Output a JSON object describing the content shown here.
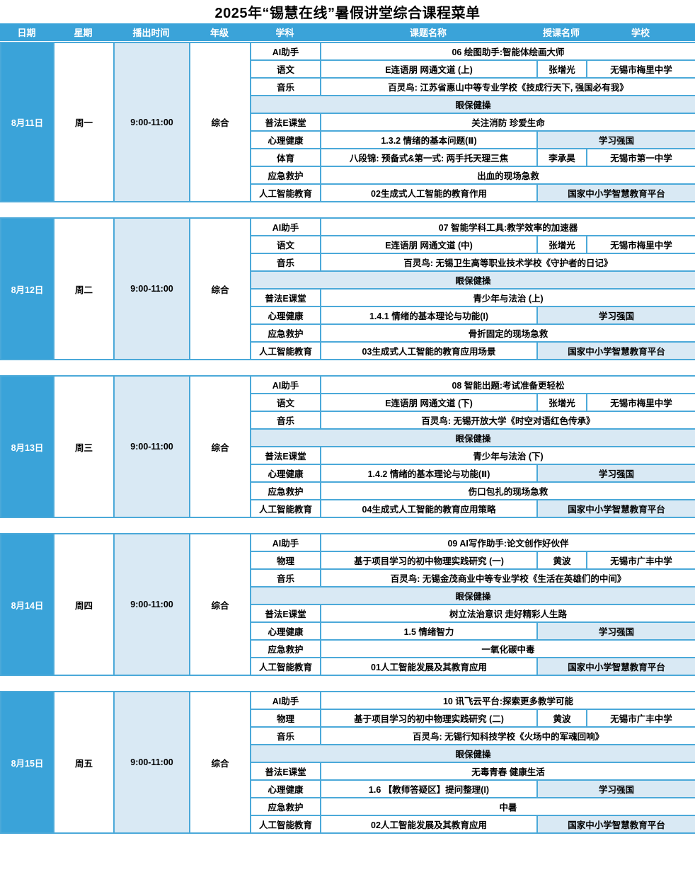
{
  "title": "2025年“锡慧在线”暑假讲堂综合课程菜单",
  "columns": [
    "日期",
    "星期",
    "播出时间",
    "年级",
    "学科",
    "课题名称",
    "授课名师",
    "学校"
  ],
  "colors": {
    "header_blue": "#3AA3D9",
    "light_blue": "#D9E9F4",
    "border_blue": "#4BA9D9"
  },
  "blocks": [
    {
      "date": "8月11日",
      "week": "周一",
      "time": "9:00-11:00",
      "grade": "综合",
      "rows": [
        {
          "type": "full",
          "subject": "AI助手",
          "topic": "06 绘图助手:智能体绘画大师"
        },
        {
          "type": "tws",
          "subject": "语文",
          "topic": "E连语朋 网通文道 (上)",
          "teacher": "张增光",
          "school": "无锡市梅里中学"
        },
        {
          "type": "full",
          "subject": "音乐",
          "topic": "百灵鸟: 江苏省惠山中等专业学校《技成行天下, 强国必有我》"
        },
        {
          "type": "exercise",
          "topic": "眼保健操"
        },
        {
          "type": "full",
          "subject": "普法E课堂",
          "topic": "关注消防 珍爱生命"
        },
        {
          "type": "platform",
          "subject": "心理健康",
          "topic": "1.3.2 情绪的基本问题(Ⅱ)",
          "platform": "学习强国"
        },
        {
          "type": "tws",
          "subject": "体育",
          "topic": "八段锦: 预备式&第一式: 两手托天理三焦",
          "teacher": "李承昊",
          "school": "无锡市第一中学",
          "topic_align": "left"
        },
        {
          "type": "full",
          "subject": "应急救护",
          "topic": "出血的现场急救"
        },
        {
          "type": "platform",
          "subject": "人工智能教育",
          "topic": "02生成式人工智能的教育作用",
          "platform": "国家中小学智慧教育平台"
        }
      ]
    },
    {
      "date": "8月12日",
      "week": "周二",
      "time": "9:00-11:00",
      "grade": "综合",
      "rows": [
        {
          "type": "full",
          "subject": "AI助手",
          "topic": "07 智能学科工具:教学效率的加速器"
        },
        {
          "type": "tws",
          "subject": "语文",
          "topic": "E连语朋 网通文道 (中)",
          "teacher": "张增光",
          "school": "无锡市梅里中学"
        },
        {
          "type": "full",
          "subject": "音乐",
          "topic": "百灵鸟: 无锡卫生高等职业技术学校《守护者的日记》"
        },
        {
          "type": "exercise",
          "topic": "眼保健操"
        },
        {
          "type": "full",
          "subject": "普法E课堂",
          "topic": "青少年与法治 (上)"
        },
        {
          "type": "platform",
          "subject": "心理健康",
          "topic": "1.4.1 情绪的基本理论与功能(I)",
          "platform": "学习强国"
        },
        {
          "type": "full",
          "subject": "应急救护",
          "topic": "骨折固定的现场急救"
        },
        {
          "type": "platform",
          "subject": "人工智能教育",
          "topic": "03生成式人工智能的教育应用场景",
          "platform": "国家中小学智慧教育平台"
        }
      ]
    },
    {
      "date": "8月13日",
      "week": "周三",
      "time": "9:00-11:00",
      "grade": "综合",
      "rows": [
        {
          "type": "full",
          "subject": "AI助手",
          "topic": "08 智能出题:考试准备更轻松"
        },
        {
          "type": "tws",
          "subject": "语文",
          "topic": "E连语朋 网通文道 (下)",
          "teacher": "张增光",
          "school": "无锡市梅里中学"
        },
        {
          "type": "full",
          "subject": "音乐",
          "topic": "百灵鸟: 无锡开放大学《时空对语红色传承》"
        },
        {
          "type": "exercise",
          "topic": "眼保健操"
        },
        {
          "type": "full",
          "subject": "普法E课堂",
          "topic": "青少年与法治 (下)"
        },
        {
          "type": "platform",
          "subject": "心理健康",
          "topic": "1.4.2 情绪的基本理论与功能(Ⅱ)",
          "platform": "学习强国"
        },
        {
          "type": "full",
          "subject": "应急救护",
          "topic": "伤口包扎的现场急救"
        },
        {
          "type": "platform",
          "subject": "人工智能教育",
          "topic": "04生成式人工智能的教育应用策略",
          "platform": "国家中小学智慧教育平台"
        }
      ]
    },
    {
      "date": "8月14日",
      "week": "周四",
      "time": "9:00-11:00",
      "grade": "综合",
      "rows": [
        {
          "type": "full",
          "subject": "AI助手",
          "topic": "09 AI写作助手:论文创作好伙伴"
        },
        {
          "type": "tws",
          "subject": "物理",
          "topic": "基于项目学习的初中物理实践研究 (一)",
          "teacher": "黄波",
          "school": "无锡市广丰中学"
        },
        {
          "type": "full",
          "subject": "音乐",
          "topic": "百灵鸟: 无锡金茂商业中等专业学校《生活在英雄们的中间》"
        },
        {
          "type": "exercise",
          "topic": "眼保健操"
        },
        {
          "type": "full",
          "subject": "普法E课堂",
          "topic": "树立法治意识 走好精彩人生路"
        },
        {
          "type": "platform",
          "subject": "心理健康",
          "topic": "1.5 情绪智力",
          "platform": "学习强国"
        },
        {
          "type": "full",
          "subject": "应急救护",
          "topic": "一氧化碳中毒"
        },
        {
          "type": "platform",
          "subject": "人工智能教育",
          "topic": "01人工智能发展及其教育应用",
          "platform": "国家中小学智慧教育平台"
        }
      ]
    },
    {
      "date": "8月15日",
      "week": "周五",
      "time": "9:00-11:00",
      "grade": "综合",
      "rows": [
        {
          "type": "full",
          "subject": "AI助手",
          "topic": "10 讯飞云平台:探索更多教学可能"
        },
        {
          "type": "tws",
          "subject": "物理",
          "topic": "基于项目学习的初中物理实践研究 (二)",
          "teacher": "黄波",
          "school": "无锡市广丰中学"
        },
        {
          "type": "full",
          "subject": "音乐",
          "topic": "百灵鸟: 无锡行知科技学校《火场中的军魂回响》"
        },
        {
          "type": "exercise",
          "topic": "眼保健操"
        },
        {
          "type": "full",
          "subject": "普法E课堂",
          "topic": "无毒青春 健康生活"
        },
        {
          "type": "platform",
          "subject": "心理健康",
          "topic": "1.6 【教师答疑区】提问整理(I)",
          "platform": "学习强国"
        },
        {
          "type": "full",
          "subject": "应急救护",
          "topic": "中暑"
        },
        {
          "type": "platform",
          "subject": "人工智能教育",
          "topic": "02人工智能发展及其教育应用",
          "platform": "国家中小学智慧教育平台"
        }
      ]
    }
  ]
}
